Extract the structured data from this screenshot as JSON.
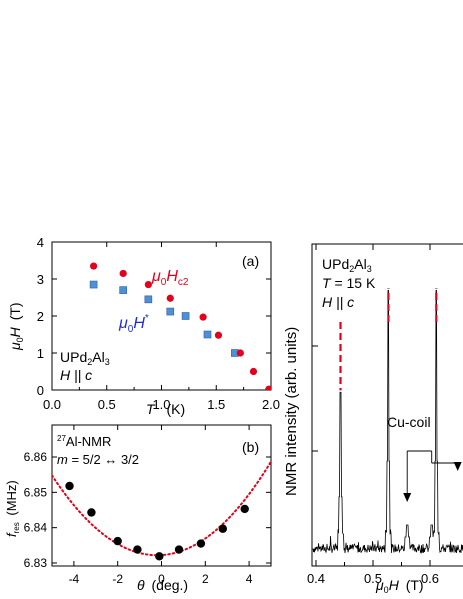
{
  "chart_data": [
    {
      "panel": "(a)",
      "type": "scatter",
      "xlabel": {
        "sym": "T",
        "unit": "(K)"
      },
      "ylabel": {
        "pre": "μ",
        "sub": "0",
        "sym": "H",
        "unit": "(T)"
      },
      "xlim": [
        0,
        2.0
      ],
      "ylim": [
        0,
        4
      ],
      "xticks": [
        "0.0",
        "0.5",
        "1.0",
        "1.5",
        "2.0"
      ],
      "yticks": [
        "0",
        "1",
        "2",
        "3",
        "4"
      ],
      "annotations": {
        "material": {
          "main": "UPd",
          "sub1": "2",
          "mid": "Al",
          "sub2": "3"
        },
        "field": "H || c"
      },
      "series": [
        {
          "name": "μ0Hc2",
          "label": {
            "pre": "μ",
            "sub0": "0",
            "sym": "H",
            "sub": "c2"
          },
          "color": "#e3001b",
          "marker": "circle",
          "x": [
            0.38,
            0.65,
            0.88,
            1.08,
            1.38,
            1.52,
            1.72,
            1.84,
            1.98
          ],
          "y": [
            3.35,
            3.15,
            2.85,
            2.48,
            1.97,
            1.48,
            1.0,
            0.5,
            0.02
          ]
        },
        {
          "name": "μ0H*",
          "label": {
            "pre": "μ",
            "sub0": "0",
            "sym": "H",
            "sup": "*"
          },
          "color": "#4f8fd6",
          "marker": "square",
          "x": [
            0.38,
            0.65,
            0.88,
            1.08,
            1.22,
            1.42,
            1.67
          ],
          "y": [
            2.85,
            2.7,
            2.45,
            2.12,
            2.0,
            1.5,
            1.0
          ]
        }
      ]
    },
    {
      "panel": "(b)",
      "type": "scatter",
      "xlabel": {
        "sym": "θ",
        "unit": "(deg.)"
      },
      "ylabel": {
        "sym": "f",
        "sub": "res",
        "unit": "(MHz)"
      },
      "xlim": [
        -5,
        5
      ],
      "ylim": [
        6.83,
        6.865
      ],
      "xticks": [
        "-4",
        "-2",
        "0",
        "2",
        "4"
      ],
      "yticks": [
        "6.83",
        "6.84",
        "6.85",
        "6.86"
      ],
      "annotations": {
        "nucleus": {
          "sup": "27",
          "main": "Al-NMR"
        },
        "transition": {
          "sym": "m",
          "rest": " = 5/2 ↔ 3/2"
        }
      },
      "series": [
        {
          "name": "data",
          "color": "#000000",
          "marker": "circle",
          "x": [
            -4.2,
            -3.2,
            -2.0,
            -1.1,
            -0.1,
            0.8,
            1.8,
            2.8,
            3.8
          ],
          "y": [
            6.8518,
            6.8443,
            6.8362,
            6.8338,
            6.8319,
            6.8338,
            6.8355,
            6.8397,
            6.8453
          ]
        },
        {
          "name": "fit",
          "color": "#e3001b",
          "style": "dotted",
          "fit": {
            "a": 0.00098,
            "b": -0.2,
            "c": 6.8322
          }
        }
      ]
    },
    {
      "panel": "spectrum",
      "type": "line",
      "xlabel": {
        "pre": "μ",
        "sub": "0",
        "sym": "H",
        "unit": "(T)"
      },
      "ylabel": {
        "text": "NMR intensity (arb. units)"
      },
      "xlim": [
        0.4,
        0.65
      ],
      "xticks": [
        "0.4",
        "0.5",
        "0.6"
      ],
      "annotations": {
        "material": {
          "main": "UPd",
          "sub1": "2",
          "mid": "Al",
          "sub2": "3"
        },
        "temperature": {
          "sym": "T",
          "rest": " = 15 K"
        },
        "field": "H || c",
        "coil": "Cu-coil"
      },
      "peaks": [
        {
          "x": 0.443,
          "height": 0.52
        },
        {
          "x": 0.527,
          "height": 0.85
        },
        {
          "x": 0.611,
          "height": 0.85
        }
      ],
      "coil_peaks": [
        0.56,
        0.603
      ],
      "peak_marker_color": "#e3001b"
    }
  ]
}
